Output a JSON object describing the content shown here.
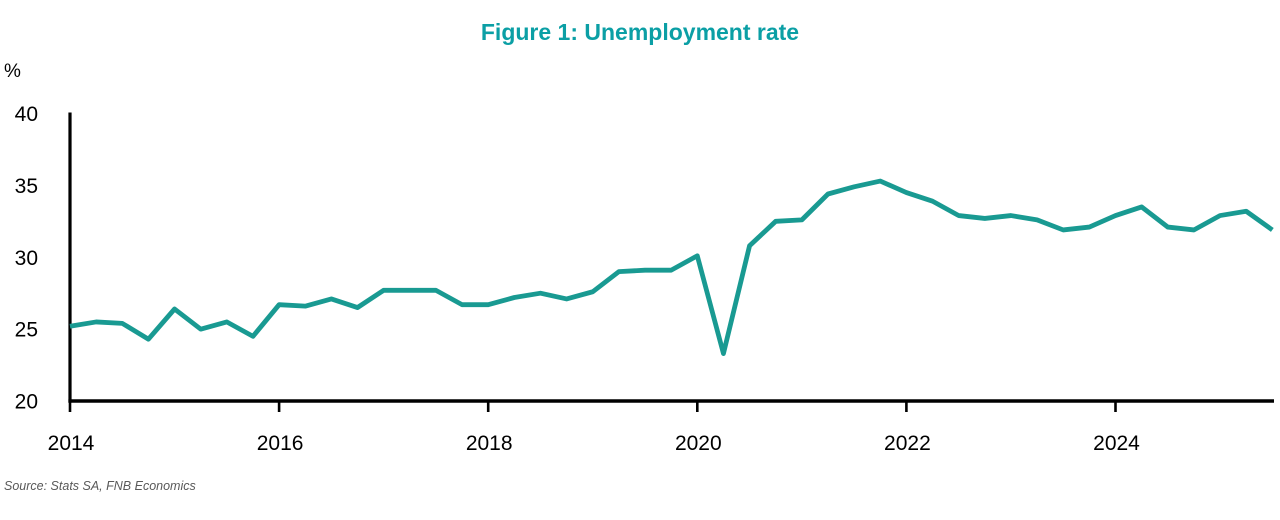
{
  "header": {
    "title": "Figure 1: Unemployment rate"
  },
  "axes": {
    "y_unit_label": "%"
  },
  "footer": {
    "source": "Source: Stats SA, FNB Economics"
  },
  "colors": {
    "title_teal": "#0b9fa5",
    "line_teal": "#199a92",
    "axis_black": "#000000",
    "source_gray": "#595959",
    "background": "#ffffff"
  },
  "chart_data": {
    "type": "line",
    "title": "Figure 1: Unemployment rate",
    "xlabel": "",
    "ylabel": "%",
    "ylim": [
      20,
      40
    ],
    "xlim": [
      2014.0,
      2025.5
    ],
    "y_ticks": [
      20,
      25,
      30,
      35,
      40
    ],
    "x_ticks": [
      2014,
      2016,
      2018,
      2020,
      2022,
      2024
    ],
    "grid": false,
    "legend": "none",
    "markers": false,
    "frequency": "quarterly",
    "x_start": 2014.0,
    "x_step": 0.25,
    "series": [
      {
        "name": "Unemployment rate",
        "values": [
          25.2,
          25.5,
          25.4,
          24.3,
          26.4,
          25.0,
          25.5,
          24.5,
          26.7,
          26.6,
          27.1,
          26.5,
          27.7,
          27.7,
          27.7,
          26.7,
          26.7,
          27.2,
          27.5,
          27.1,
          27.6,
          29.0,
          29.1,
          29.1,
          30.1,
          23.3,
          30.8,
          32.5,
          32.6,
          34.4,
          34.9,
          35.3,
          34.5,
          33.9,
          32.9,
          32.7,
          32.9,
          32.6,
          31.9,
          32.1,
          32.9,
          33.5,
          32.1,
          31.9,
          32.9,
          33.2,
          31.9
        ]
      }
    ]
  }
}
